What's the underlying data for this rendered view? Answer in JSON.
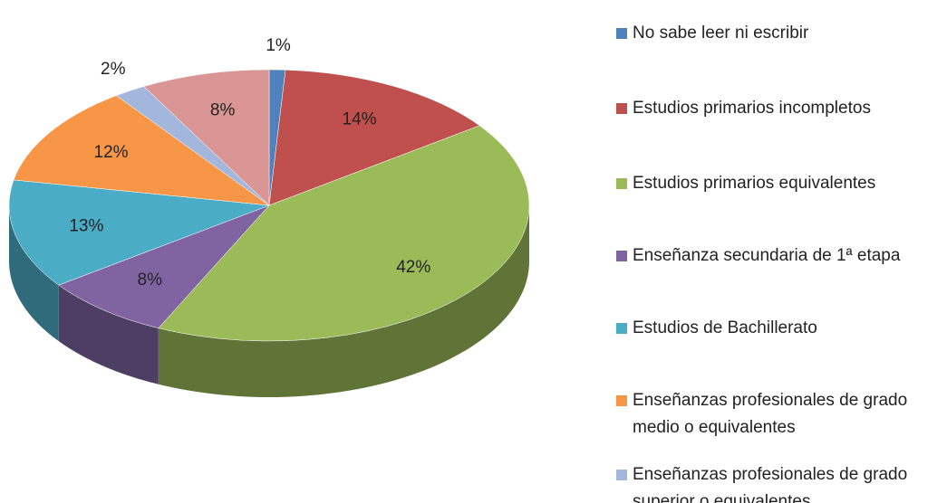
{
  "chart_data": {
    "type": "pie",
    "categories": [
      "No sabe leer ni escribir",
      "Estudios primarios incompletos",
      "Estudios primarios equivalentes",
      "Enseñanza secundaria de 1ª etapa",
      "Estudios de Bachillerato",
      "Enseñanzas profesionales de grado medio o equivalentes",
      "Enseñanzas profesionales de grado superior o equivalentes",
      null
    ],
    "values": [
      1,
      14,
      42,
      8,
      13,
      12,
      2,
      8
    ],
    "value_labels": [
      "1%",
      "14%",
      "42%",
      "8%",
      "13%",
      "12%",
      "2%",
      "8%"
    ],
    "colors": [
      "#4f81bd",
      "#c0504d",
      "#9bbb59",
      "#8064a2",
      "#4bacc6",
      "#f79646",
      "#a3b6dc",
      "#d99694"
    ]
  }
}
